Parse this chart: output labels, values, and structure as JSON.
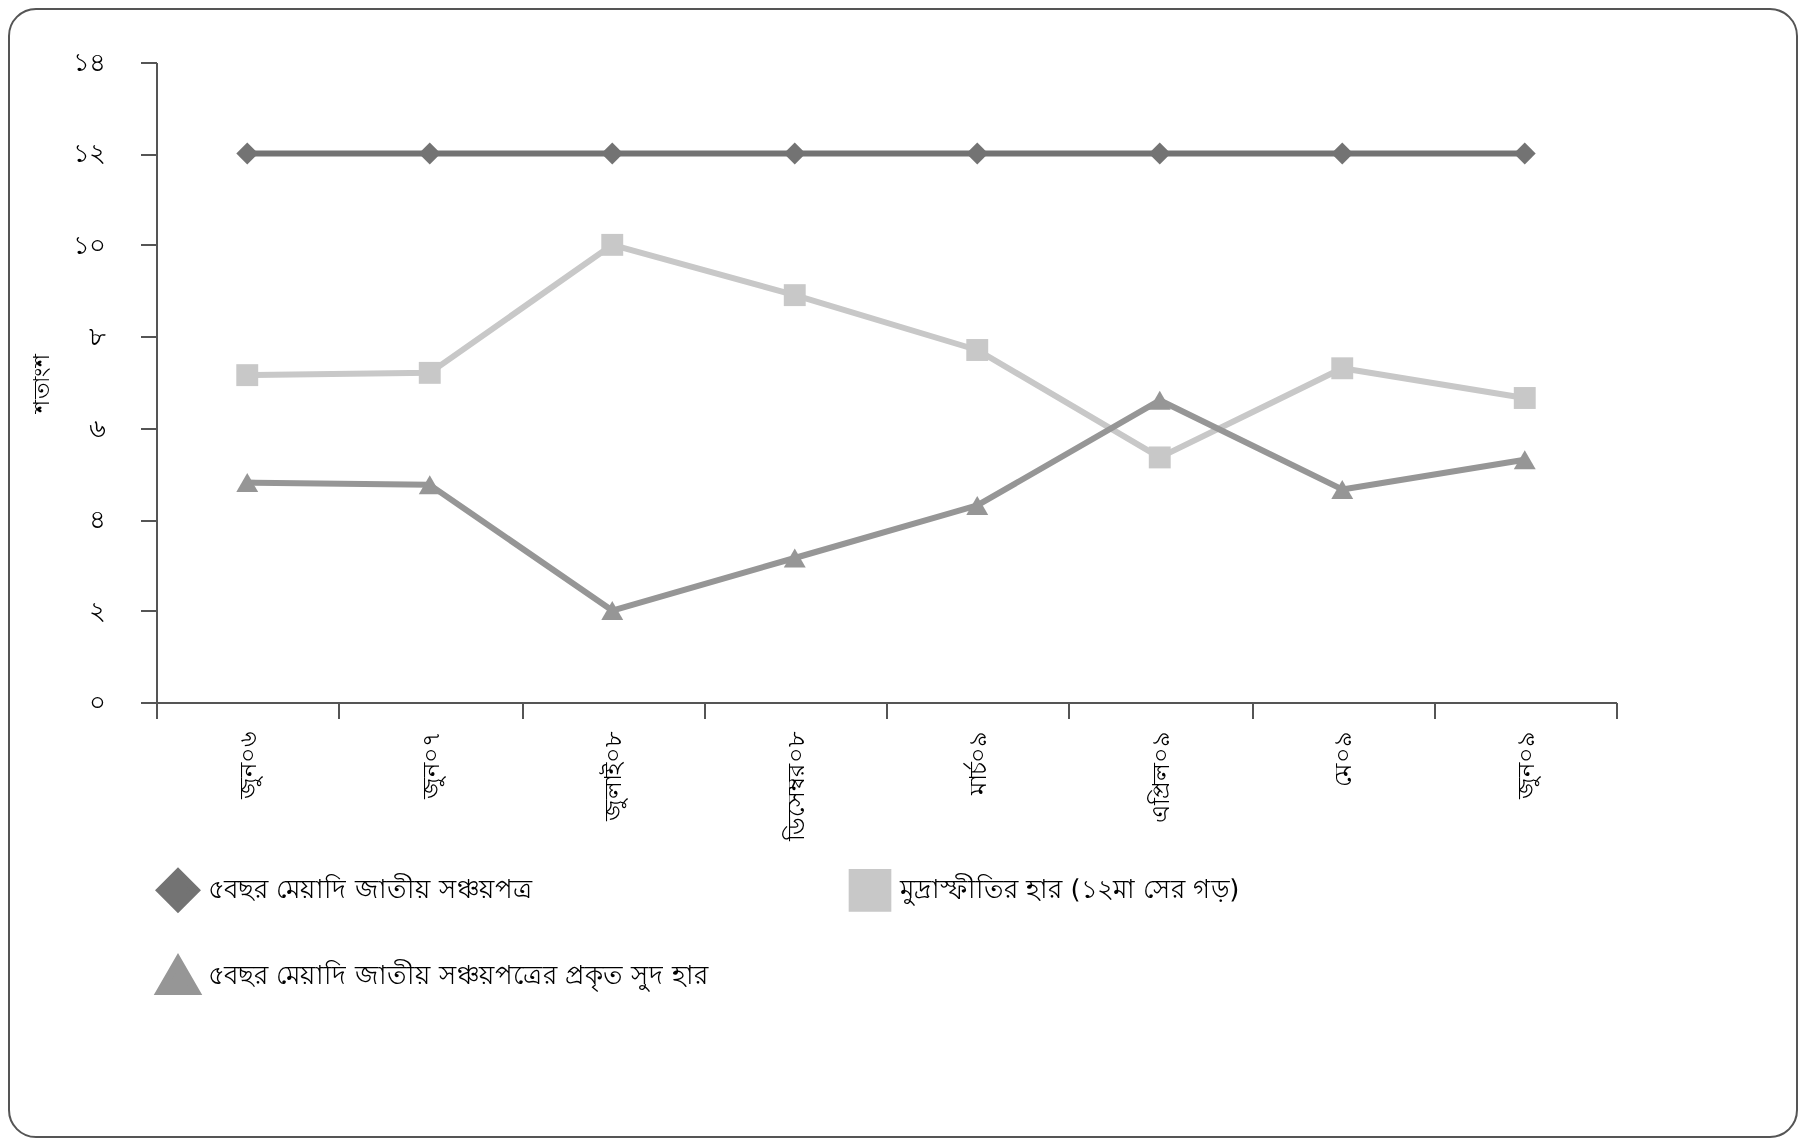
{
  "chart_data": {
    "type": "line",
    "ylabel": "শতাংশ",
    "categories": [
      "জুন০৬",
      "জুন০৭",
      "জুলাই০৮",
      "ডিসেম্বর০৮",
      "মার্চ০৯",
      "এপ্রিল০৯",
      "মে০৯",
      "জুন০৯"
    ],
    "series": [
      {
        "name": "৫বছর  মেয়াদি জাতীয় সঞ্চয়পত্র",
        "color": "#737373",
        "marker": "diamond",
        "values": [
          12,
          12,
          12,
          12,
          12,
          12,
          12,
          12
        ]
      },
      {
        "name": "মুদ্রাস্ফীতির হার (১২মা সের গড়)",
        "color": "#c8c8c8",
        "marker": "square",
        "values": [
          7.15,
          7.2,
          10,
          8.9,
          7.7,
          5.35,
          7.3,
          6.65
        ]
      },
      {
        "name": "৫বছর  মেয়াদি জাতীয় সঞ্চয়পত্রের প্রকৃত সুদ হার",
        "color": "#969696",
        "marker": "triangle",
        "values": [
          4.8,
          4.75,
          2,
          3.15,
          4.3,
          6.6,
          4.65,
          5.3
        ]
      }
    ],
    "ylim": [
      0,
      14
    ],
    "yticks": [
      {
        "value": 0,
        "label": "০"
      },
      {
        "value": 2,
        "label": "২"
      },
      {
        "value": 4,
        "label": "৪"
      },
      {
        "value": 6,
        "label": "৬"
      },
      {
        "value": 8,
        "label": "৮"
      },
      {
        "value": 10,
        "label": "১০"
      },
      {
        "value": 12,
        "label": "১২"
      },
      {
        "value": 14,
        "label": "১৪"
      }
    ],
    "grid": false,
    "legend": "bottom",
    "line_style": "solid"
  }
}
